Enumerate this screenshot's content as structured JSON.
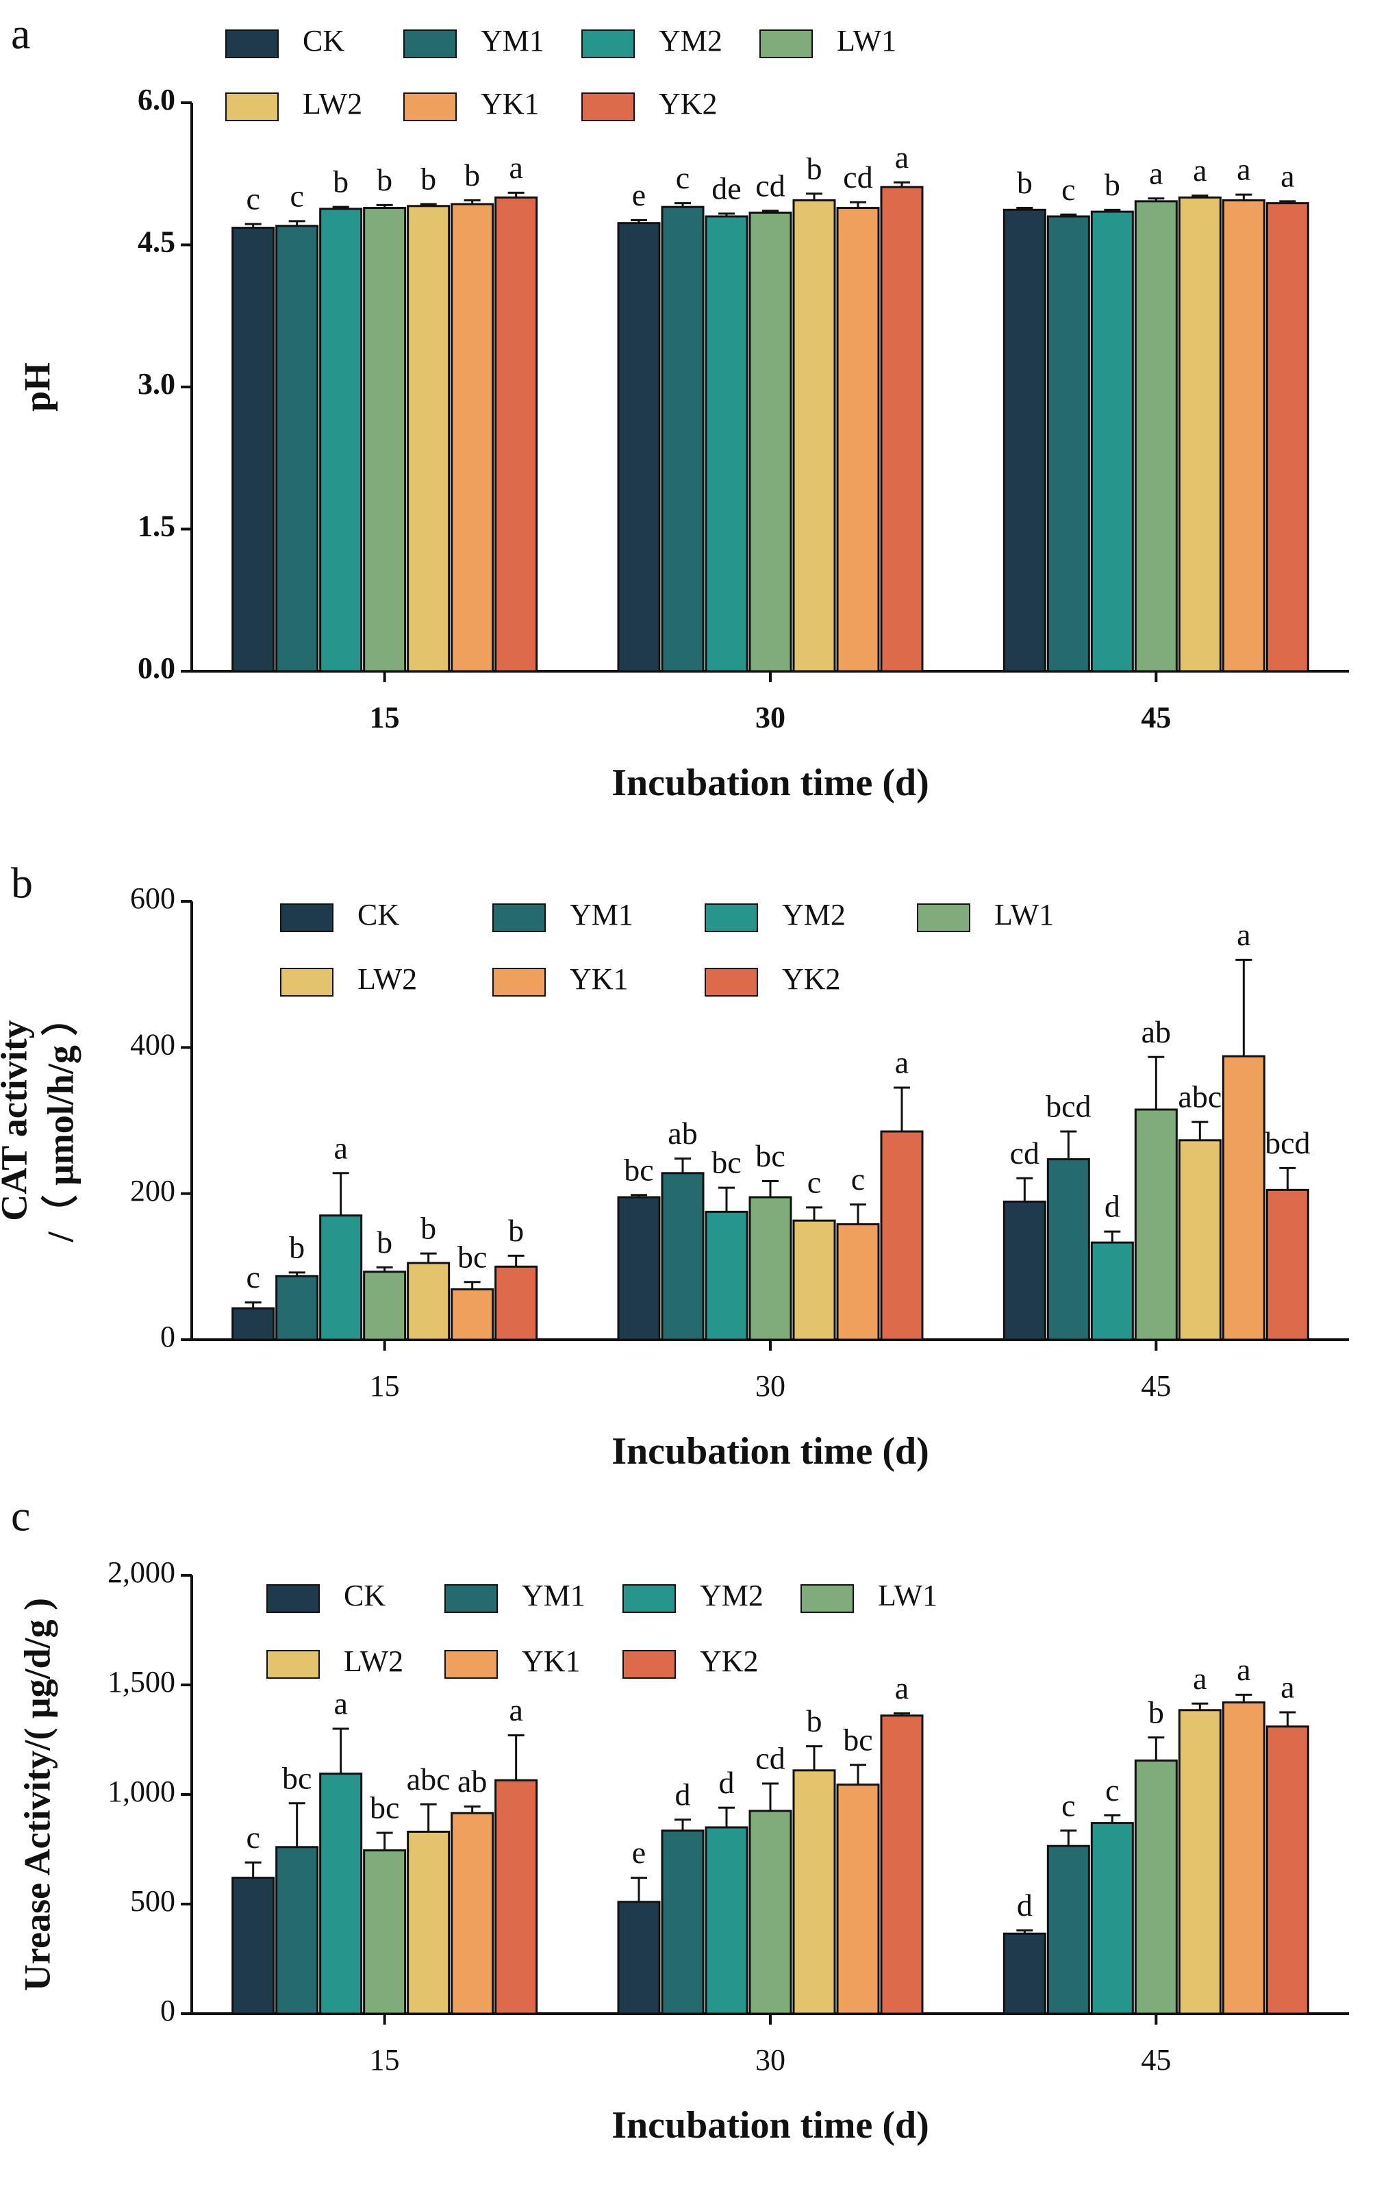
{
  "chart_data": [
    {
      "type": "bar",
      "panel": "a",
      "xlabel": "Incubation time (d)",
      "ylabel": [
        "pH"
      ],
      "categories": [
        "15",
        "30",
        "45"
      ],
      "ylim": [
        0,
        6
      ],
      "yticks": [
        {
          "value": 0,
          "label": "0.0"
        },
        {
          "value": 1.5,
          "label": "1.5"
        },
        {
          "value": 3,
          "label": "3.0"
        },
        {
          "value": 4.5,
          "label": "4.5"
        },
        {
          "value": 6,
          "label": "6.0"
        }
      ],
      "series": [
        {
          "name": "CK",
          "color": "#1f3b4b",
          "values": [
            4.68,
            4.73,
            4.87
          ],
          "errors": [
            0.04,
            0.03,
            0.02
          ],
          "significance": [
            "c",
            "e",
            "b"
          ]
        },
        {
          "name": "YM1",
          "color": "#256b6e",
          "values": [
            4.7,
            4.9,
            4.8
          ],
          "errors": [
            0.05,
            0.04,
            0.02
          ],
          "significance": [
            "c",
            "c",
            "c"
          ]
        },
        {
          "name": "YM2",
          "color": "#26968c",
          "values": [
            4.88,
            4.8,
            4.85
          ],
          "errors": [
            0.02,
            0.03,
            0.02
          ],
          "significance": [
            "b",
            "de",
            "b"
          ]
        },
        {
          "name": "LW1",
          "color": "#80ab7b",
          "values": [
            4.89,
            4.84,
            4.96
          ],
          "errors": [
            0.03,
            0.02,
            0.03
          ],
          "significance": [
            "b",
            "cd",
            "a"
          ]
        },
        {
          "name": "LW2",
          "color": "#e3c46c",
          "values": [
            4.91,
            4.97,
            5.0
          ],
          "errors": [
            0.02,
            0.07,
            0.02
          ],
          "significance": [
            "b",
            "b",
            "a"
          ]
        },
        {
          "name": "YK1",
          "color": "#eea05c",
          "values": [
            4.93,
            4.89,
            4.97
          ],
          "errors": [
            0.04,
            0.06,
            0.06
          ],
          "significance": [
            "b",
            "cd",
            "a"
          ]
        },
        {
          "name": "YK2",
          "color": "#de6a4c",
          "values": [
            5.0,
            5.11,
            4.94
          ],
          "errors": [
            0.05,
            0.05,
            0.02
          ],
          "significance": [
            "a",
            "a",
            "a"
          ]
        }
      ]
    },
    {
      "type": "bar",
      "panel": "b",
      "xlabel": "Incubation time (d)",
      "ylabel": [
        "CAT activity",
        "/（ μmol/h/g ）"
      ],
      "categories": [
        "15",
        "30",
        "45"
      ],
      "ylim": [
        0,
        600
      ],
      "yticks": [
        0,
        200,
        400,
        600
      ],
      "series": [
        {
          "name": "CK",
          "color": "#1f3b4b",
          "values": [
            43,
            195,
            189
          ],
          "errors": [
            8,
            3,
            32
          ],
          "significance": [
            "c",
            "bc",
            "cd"
          ]
        },
        {
          "name": "YM1",
          "color": "#256b6e",
          "values": [
            87,
            228,
            247
          ],
          "errors": [
            5,
            20,
            38
          ],
          "significance": [
            "b",
            "ab",
            "bcd"
          ]
        },
        {
          "name": "YM2",
          "color": "#26968c",
          "values": [
            170,
            175,
            133
          ],
          "errors": [
            58,
            33,
            15
          ],
          "significance": [
            "a",
            "bc",
            "d"
          ]
        },
        {
          "name": "LW1",
          "color": "#80ab7b",
          "values": [
            93,
            195,
            315
          ],
          "errors": [
            6,
            22,
            72
          ],
          "significance": [
            "b",
            "bc",
            "ab"
          ]
        },
        {
          "name": "LW2",
          "color": "#e3c46c",
          "values": [
            105,
            163,
            273
          ],
          "errors": [
            13,
            18,
            25
          ],
          "significance": [
            "b",
            "c",
            "abc"
          ]
        },
        {
          "name": "YK1",
          "color": "#eea05c",
          "values": [
            69,
            158,
            388
          ],
          "errors": [
            10,
            27,
            132
          ],
          "significance": [
            "bc",
            "c",
            "a"
          ]
        },
        {
          "name": "YK2",
          "color": "#de6a4c",
          "values": [
            100,
            285,
            205
          ],
          "errors": [
            15,
            60,
            30
          ],
          "significance": [
            "b",
            "a",
            "bcd"
          ]
        }
      ]
    },
    {
      "type": "bar",
      "panel": "c",
      "xlabel": "Incubation time (d)",
      "ylabel": [
        "Urease Activity/( μg/d/g )"
      ],
      "categories": [
        "15",
        "30",
        "45"
      ],
      "ylim": [
        0,
        2000
      ],
      "yticks": [
        0,
        500,
        {
          "value": 1000,
          "label": "1,000"
        },
        {
          "value": 1500,
          "label": "1,500"
        },
        {
          "value": 2000,
          "label": "2,000"
        }
      ],
      "series": [
        {
          "name": "CK",
          "color": "#1f3b4b",
          "values": [
            620,
            510,
            365
          ],
          "errors": [
            70,
            110,
            15
          ],
          "significance": [
            "c",
            "e",
            "d"
          ]
        },
        {
          "name": "YM1",
          "color": "#256b6e",
          "values": [
            760,
            835,
            765
          ],
          "errors": [
            200,
            50,
            70
          ],
          "significance": [
            "bc",
            "d",
            "c"
          ]
        },
        {
          "name": "YM2",
          "color": "#26968c",
          "values": [
            1095,
            850,
            870
          ],
          "errors": [
            205,
            90,
            35
          ],
          "significance": [
            "a",
            "d",
            "c"
          ]
        },
        {
          "name": "LW1",
          "color": "#80ab7b",
          "values": [
            745,
            925,
            1155
          ],
          "errors": [
            80,
            125,
            105
          ],
          "significance": [
            "bc",
            "cd",
            "b"
          ]
        },
        {
          "name": "LW2",
          "color": "#e3c46c",
          "values": [
            830,
            1110,
            1385
          ],
          "errors": [
            125,
            110,
            30
          ],
          "significance": [
            "abc",
            "b",
            "a"
          ]
        },
        {
          "name": "YK1",
          "color": "#eea05c",
          "values": [
            915,
            1045,
            1420
          ],
          "errors": [
            30,
            90,
            35
          ],
          "significance": [
            "ab",
            "bc",
            "a"
          ]
        },
        {
          "name": "YK2",
          "color": "#de6a4c",
          "values": [
            1065,
            1360,
            1310
          ],
          "errors": [
            205,
            10,
            65
          ],
          "significance": [
            "a",
            "a",
            "a"
          ]
        }
      ]
    }
  ]
}
